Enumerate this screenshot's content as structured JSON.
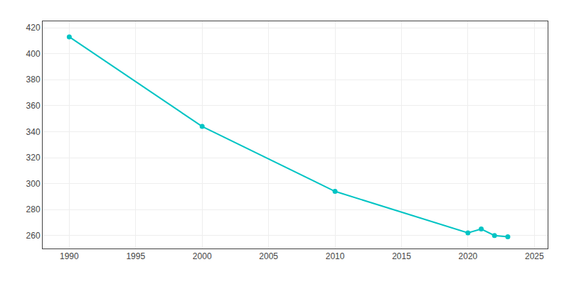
{
  "chart_data": {
    "type": "line",
    "x": [
      1990,
      2000,
      2010,
      2020,
      2021,
      2022,
      2023
    ],
    "values": [
      413,
      344,
      294,
      262,
      265,
      260,
      259
    ],
    "color": "#00C4C4",
    "marker": "circle",
    "line_style": "solid",
    "xlim": [
      1988,
      2026
    ],
    "xticks": [
      1990,
      1995,
      2000,
      2005,
      2010,
      2015,
      2020,
      2025
    ],
    "ylim": [
      250,
      425
    ],
    "yticks": [
      260,
      280,
      300,
      320,
      340,
      360,
      380,
      400,
      420
    ],
    "grid": true
  }
}
